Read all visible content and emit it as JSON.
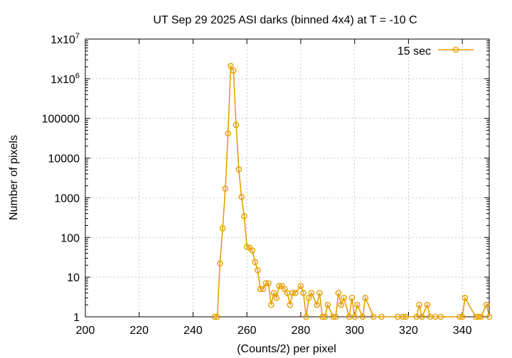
{
  "chart_data": {
    "type": "line",
    "title": "UT Sep 29 2025 ASI darks (binned 4x4) at T = -10 C",
    "xlabel": "(Counts/2) per pixel",
    "ylabel": "Number of pixels",
    "xlim": [
      200,
      350
    ],
    "ylim": [
      1,
      10000000
    ],
    "yscale": "log",
    "grid": true,
    "legend_position": "top-right",
    "x_ticks": [
      200,
      220,
      240,
      260,
      280,
      300,
      320,
      340
    ],
    "x_tick_labels": [
      "200",
      "220",
      "240",
      "260",
      "280",
      "300",
      "320",
      "340"
    ],
    "y_ticks": [
      1,
      10,
      100,
      1000,
      10000,
      100000,
      1000000,
      10000000
    ],
    "y_tick_labels": [
      {
        "base": "1",
        "sup": ""
      },
      {
        "base": "10",
        "sup": ""
      },
      {
        "base": "100",
        "sup": ""
      },
      {
        "base": "1000",
        "sup": ""
      },
      {
        "base": "10000",
        "sup": ""
      },
      {
        "base": "100000",
        "sup": ""
      },
      {
        "base": "1x10",
        "sup": "6"
      },
      {
        "base": "1x10",
        "sup": "7"
      }
    ],
    "series_color": "#e69f00",
    "series": [
      {
        "name": "15 sec",
        "points": [
          [
            248,
            1
          ],
          [
            249,
            1
          ],
          [
            250,
            22
          ],
          [
            251,
            170
          ],
          [
            252,
            1700
          ],
          [
            253,
            42000
          ],
          [
            254,
            2100000
          ],
          [
            255,
            1600000
          ],
          [
            256,
            68000
          ],
          [
            257,
            5200
          ],
          [
            258,
            1050
          ],
          [
            259,
            340
          ],
          [
            260,
            58
          ],
          [
            261,
            55
          ],
          [
            262,
            47
          ],
          [
            263,
            24
          ],
          [
            264,
            15
          ],
          [
            265,
            5
          ],
          [
            266,
            5
          ],
          [
            267,
            7
          ],
          [
            268,
            7
          ],
          [
            269,
            2
          ],
          [
            270,
            4
          ],
          [
            271,
            3
          ],
          [
            272,
            6
          ],
          [
            273,
            6
          ],
          [
            274,
            5
          ],
          [
            275,
            4
          ],
          [
            276,
            2
          ],
          [
            277,
            4
          ],
          [
            278,
            4
          ],
          [
            280,
            6
          ],
          [
            281,
            4
          ],
          [
            282,
            1
          ],
          [
            283,
            3
          ],
          [
            284,
            4
          ],
          [
            286,
            2
          ],
          [
            287,
            4
          ],
          [
            288,
            1
          ],
          [
            289,
            1
          ],
          [
            290,
            2
          ],
          [
            292,
            1
          ],
          [
            293,
            1
          ],
          [
            294,
            4
          ],
          [
            295,
            2
          ],
          [
            296,
            3
          ],
          [
            298,
            1
          ],
          [
            299,
            3
          ],
          [
            300,
            1
          ],
          [
            301,
            2
          ],
          [
            303,
            1
          ],
          [
            304,
            3
          ],
          [
            307,
            1
          ],
          [
            310,
            1
          ],
          [
            316,
            1
          ],
          [
            318,
            1
          ],
          [
            319,
            1
          ],
          [
            323,
            1
          ],
          [
            324,
            2
          ],
          [
            325,
            1
          ],
          [
            327,
            2
          ],
          [
            328,
            1
          ],
          [
            330,
            1
          ],
          [
            332,
            1
          ],
          [
            339,
            1
          ],
          [
            340,
            1
          ],
          [
            341,
            3
          ],
          [
            345,
            1
          ],
          [
            346,
            1
          ],
          [
            347,
            1
          ],
          [
            349,
            2
          ],
          [
            350,
            1
          ]
        ]
      }
    ]
  }
}
